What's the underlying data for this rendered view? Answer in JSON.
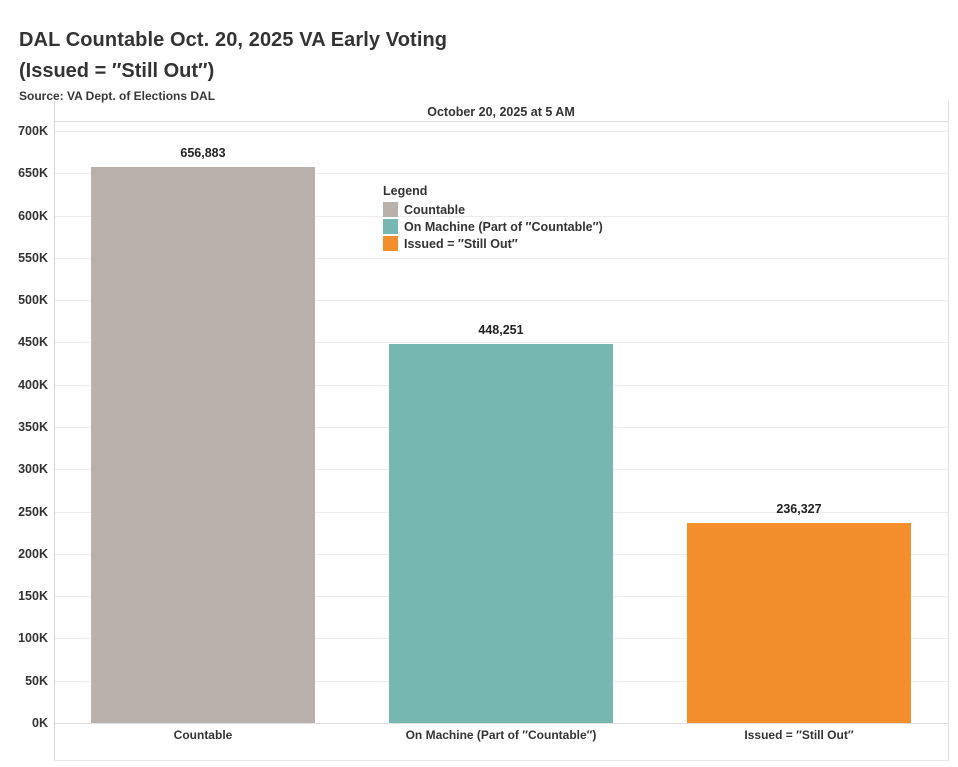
{
  "title": {
    "line1": "DAL Countable Oct. 20, 2025 VA Early Voting",
    "line2": "(Issued = ″Still Out″)",
    "source": "Source: VA Dept. of Elections DAL"
  },
  "column_header": "October 20, 2025 at 5 AM",
  "legend": {
    "title": "Legend",
    "items": [
      {
        "label": "Countable",
        "color": "#bab0ac"
      },
      {
        "label": "On Machine (Part of ″Countable″)",
        "color": "#76b7b2"
      },
      {
        "label": "Issued = ″Still Out″",
        "color": "#f28e2b"
      }
    ]
  },
  "chart_data": {
    "type": "bar",
    "title": "DAL Countable Oct. 20, 2025 VA Early Voting (Issued = ″Still Out″)",
    "subtitle": "October 20, 2025 at 5 AM",
    "source": "Source: VA Dept. of Elections DAL",
    "categories": [
      "Countable",
      "On Machine (Part of ″Countable″)",
      "Issued = ″Still Out″"
    ],
    "values": [
      656883,
      448251,
      236327
    ],
    "value_labels": [
      "656,883",
      "448,251",
      "236,327"
    ],
    "colors": [
      "#bab0ac",
      "#76b7b2",
      "#f28e2b"
    ],
    "xlabel": "",
    "ylabel": "",
    "ylim": [
      0,
      700000
    ],
    "ytick_step": 50000,
    "ytick_labels": [
      "0K",
      "50K",
      "100K",
      "150K",
      "200K",
      "250K",
      "300K",
      "350K",
      "400K",
      "450K",
      "500K",
      "550K",
      "600K",
      "650K",
      "700K"
    ],
    "grid": true,
    "legend_position": "inside top-left of plot"
  }
}
